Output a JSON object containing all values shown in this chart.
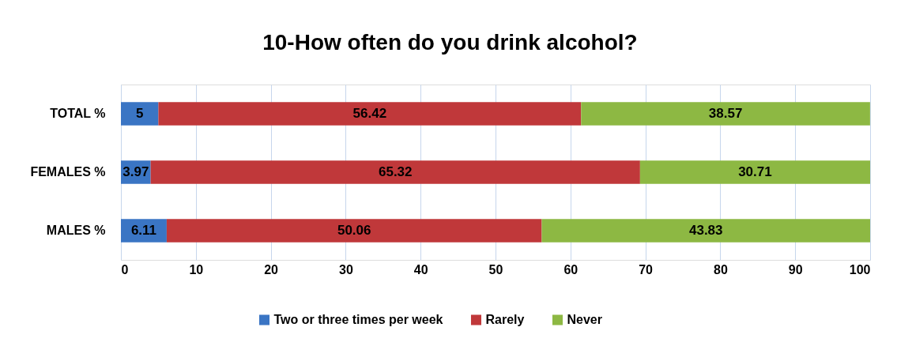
{
  "chart_data": {
    "type": "bar",
    "orientation": "horizontal",
    "stacked": true,
    "title": "10-How often do you drink alcohol?",
    "categories": [
      "TOTAL %",
      "FEMALES %",
      "MALES %"
    ],
    "series": [
      {
        "name": "Two or three times per week",
        "color": "#3a75c4",
        "values": [
          5,
          3.97,
          6.11
        ]
      },
      {
        "name": "Rarely",
        "color": "#c0383a",
        "values": [
          56.42,
          65.32,
          50.06
        ]
      },
      {
        "name": "Never",
        "color": "#8db843",
        "values": [
          38.57,
          30.71,
          43.83
        ]
      }
    ],
    "xlim": [
      0,
      100
    ],
    "xticks": [
      0,
      10,
      20,
      30,
      40,
      50,
      60,
      70,
      80,
      90,
      100
    ],
    "grid": "x",
    "legend": "bottom",
    "data_labels": true
  }
}
